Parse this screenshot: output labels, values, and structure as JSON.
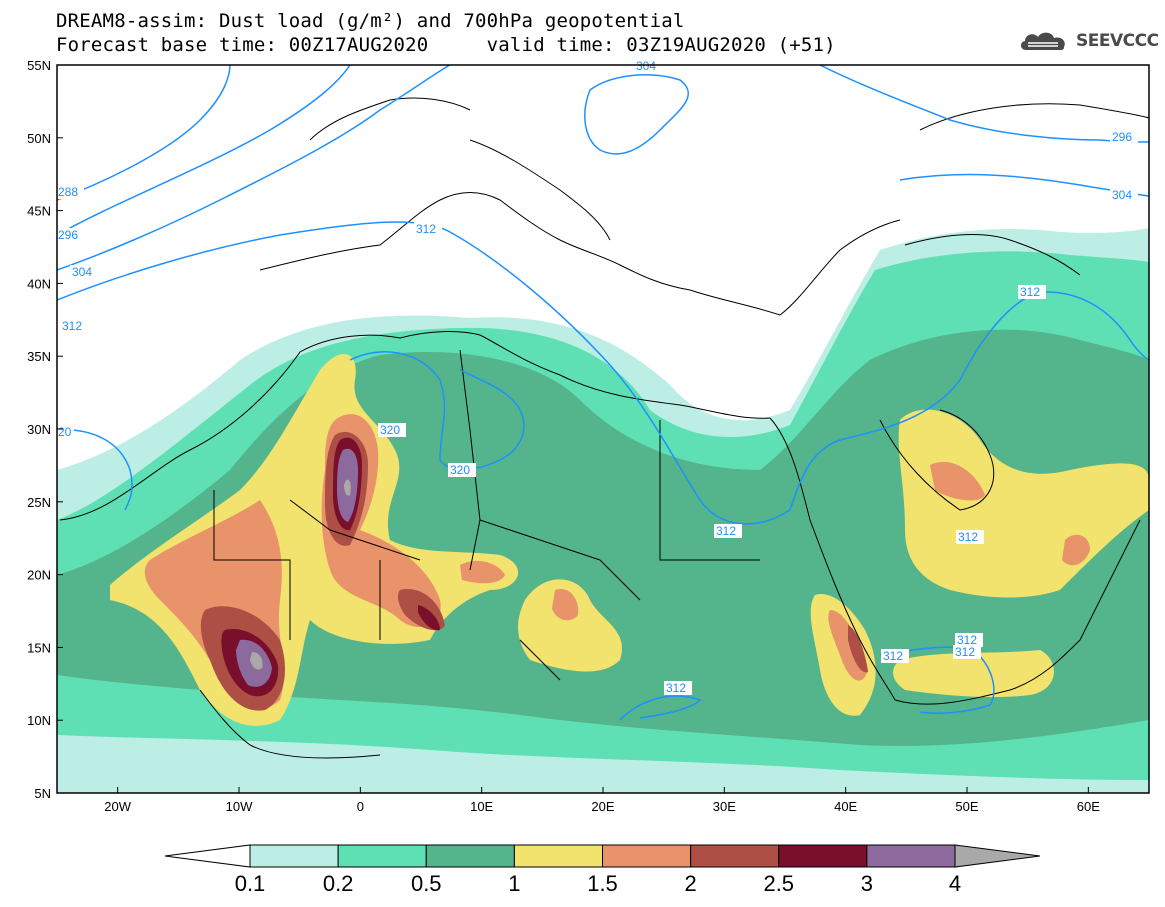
{
  "header": {
    "title_line1": "DREAM8-assim: Dust load (g/m²) and 700hPa geopotential",
    "title_line2": "Forecast base time: 00Z17AUG2020     valid time: 03Z19AUG2020 (+51)"
  },
  "logo": {
    "text": "SEEVCCC",
    "icon": "cloud-icon"
  },
  "map": {
    "lon_ticks": [
      "20W",
      "10W",
      "0",
      "10E",
      "20E",
      "30E",
      "40E",
      "50E",
      "60E"
    ],
    "lat_ticks": [
      "55N",
      "50N",
      "45N",
      "40N",
      "35N",
      "30N",
      "25N",
      "20N",
      "15N",
      "10N",
      "5N"
    ],
    "lon_range": [
      -25,
      65
    ],
    "lat_range": [
      5,
      55
    ],
    "contour_color": "#1e90ff",
    "contour_labels": [
      "304",
      "296",
      "288",
      "296",
      "304",
      "312",
      "312",
      "320",
      "320",
      "312",
      "312",
      "312",
      "312",
      "312",
      "312",
      "312",
      "304",
      "296",
      "20"
    ]
  },
  "colorbar": {
    "labels": [
      "0.1",
      "0.2",
      "0.5",
      "1",
      "1.5",
      "2",
      "2.5",
      "3",
      "4"
    ],
    "colors": [
      "#ffffff",
      "#bdeee6",
      "#5ee0b4",
      "#54b58c",
      "#f2e26e",
      "#e8936a",
      "#ad4f44",
      "#7a0f2c",
      "#8c6a9e",
      "#a9a9a9"
    ]
  }
}
